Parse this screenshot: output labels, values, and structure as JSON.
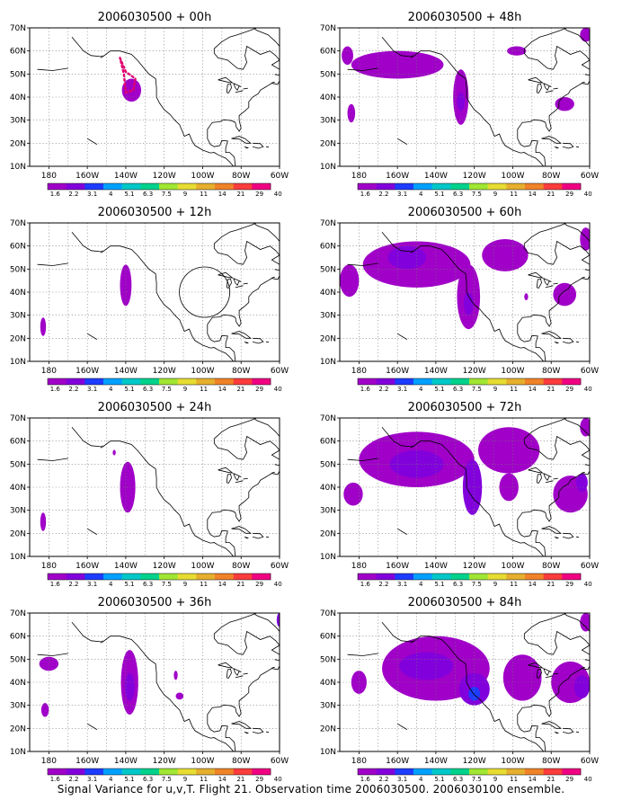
{
  "caption": "Signal Variance for u,v,T. Flight 21. Observation time 2006030500. 2006030100 ensemble.",
  "map": {
    "lat_labels": [
      "70N",
      "60N",
      "50N",
      "40N",
      "30N",
      "20N",
      "10N"
    ],
    "lon_labels": [
      "180",
      "160W",
      "140W",
      "120W",
      "100W",
      "80W",
      "60W"
    ],
    "lon_range_deg_east": [
      -190,
      -60
    ],
    "lat_range_deg_north": [
      10,
      70
    ],
    "grid": "dotted"
  },
  "colorbar": {
    "labels": [
      "1.6",
      "2.2",
      "3.1",
      "4",
      "5.1",
      "6.3",
      "7.5",
      "9",
      "11",
      "14",
      "21",
      "29",
      "40"
    ],
    "colors": [
      "#a000c8",
      "#8200dc",
      "#1e3cff",
      "#00a0ff",
      "#00c8c8",
      "#00d28c",
      "#a0e632",
      "#e6dc32",
      "#e6af2d",
      "#f08228",
      "#fa3c3c",
      "#f00082"
    ]
  },
  "panels": [
    {
      "title": "2006030500 + 00h",
      "col": 0,
      "row": 0,
      "blobs": [
        {
          "lon": -137,
          "lat": 43,
          "rx": 5,
          "ry": 5,
          "level": 0
        }
      ],
      "flight_track": true
    },
    {
      "title": "2006030500 + 12h",
      "col": 0,
      "row": 1,
      "blobs": [
        {
          "lon": -140,
          "lat": 43,
          "rx": 3,
          "ry": 9,
          "level": 0
        },
        {
          "lon": -183,
          "lat": 25,
          "rx": 1.5,
          "ry": 4,
          "level": 0
        }
      ]
    },
    {
      "title": "2006030500 + 24h",
      "col": 0,
      "row": 2,
      "blobs": [
        {
          "lon": -139,
          "lat": 40,
          "rx": 4,
          "ry": 11,
          "level": 0
        },
        {
          "lon": -183,
          "lat": 25,
          "rx": 1.5,
          "ry": 4,
          "level": 0
        },
        {
          "lon": -146,
          "lat": 55,
          "rx": 0.8,
          "ry": 1.2,
          "level": 0
        }
      ]
    },
    {
      "title": "2006030500 + 36h",
      "col": 0,
      "row": 3,
      "blobs": [
        {
          "lon": -138,
          "lat": 40,
          "rx": 4.5,
          "ry": 14,
          "level": 0
        },
        {
          "lon": -138,
          "lat": 38,
          "rx": 2.5,
          "ry": 6,
          "level": 1
        },
        {
          "lon": -180,
          "lat": 48,
          "rx": 5,
          "ry": 3,
          "level": 0
        },
        {
          "lon": -182,
          "lat": 28,
          "rx": 2,
          "ry": 3,
          "level": 0
        },
        {
          "lon": -114,
          "lat": 43,
          "rx": 1,
          "ry": 2,
          "level": 0
        },
        {
          "lon": -112,
          "lat": 34,
          "rx": 2,
          "ry": 1.5,
          "level": 0
        },
        {
          "lon": -60,
          "lat": 67,
          "rx": 1.5,
          "ry": 3,
          "level": 1
        }
      ]
    },
    {
      "title": "2006030500 + 48h",
      "col": 1,
      "row": 0,
      "blobs": [
        {
          "lon": -160,
          "lat": 54,
          "rx": 24,
          "ry": 6,
          "level": 0
        },
        {
          "lon": -186,
          "lat": 58,
          "rx": 3,
          "ry": 4,
          "level": 0
        },
        {
          "lon": -127,
          "lat": 40,
          "rx": 4,
          "ry": 12,
          "level": 0
        },
        {
          "lon": -127,
          "lat": 38,
          "rx": 2,
          "ry": 4,
          "level": 1
        },
        {
          "lon": -184,
          "lat": 33,
          "rx": 2,
          "ry": 4,
          "level": 0
        },
        {
          "lon": -98,
          "lat": 60,
          "rx": 5,
          "ry": 2,
          "level": 0
        },
        {
          "lon": -73,
          "lat": 37,
          "rx": 5,
          "ry": 3,
          "level": 0
        },
        {
          "lon": -62,
          "lat": 67,
          "rx": 3,
          "ry": 3,
          "level": 0
        }
      ]
    },
    {
      "title": "2006030500 + 60h",
      "col": 1,
      "row": 1,
      "blobs": [
        {
          "lon": -150,
          "lat": 52,
          "rx": 28,
          "ry": 10,
          "level": 0
        },
        {
          "lon": -155,
          "lat": 55,
          "rx": 10,
          "ry": 5,
          "level": 1
        },
        {
          "lon": -123,
          "lat": 38,
          "rx": 6,
          "ry": 14,
          "level": 0
        },
        {
          "lon": -123,
          "lat": 35,
          "rx": 2.5,
          "ry": 5,
          "level": 1
        },
        {
          "lon": -104,
          "lat": 56,
          "rx": 12,
          "ry": 7,
          "level": 0
        },
        {
          "lon": -185,
          "lat": 45,
          "rx": 5,
          "ry": 7,
          "level": 0
        },
        {
          "lon": -73,
          "lat": 39,
          "rx": 6,
          "ry": 5,
          "level": 0
        },
        {
          "lon": -93,
          "lat": 38,
          "rx": 1,
          "ry": 1.5,
          "level": 0
        },
        {
          "lon": -62,
          "lat": 63,
          "rx": 3,
          "ry": 5,
          "level": 0
        }
      ]
    },
    {
      "title": "2006030500 + 72h",
      "col": 1,
      "row": 2,
      "blobs": [
        {
          "lon": -150,
          "lat": 52,
          "rx": 30,
          "ry": 12,
          "level": 0
        },
        {
          "lon": -150,
          "lat": 50,
          "rx": 14,
          "ry": 6,
          "level": 1
        },
        {
          "lon": -121,
          "lat": 40,
          "rx": 5,
          "ry": 12,
          "level": 1
        },
        {
          "lon": -102,
          "lat": 56,
          "rx": 16,
          "ry": 10,
          "level": 0
        },
        {
          "lon": -102,
          "lat": 40,
          "rx": 5,
          "ry": 6,
          "level": 0
        },
        {
          "lon": -183,
          "lat": 37,
          "rx": 5,
          "ry": 5,
          "level": 0
        },
        {
          "lon": -70,
          "lat": 37,
          "rx": 9,
          "ry": 8,
          "level": 0
        },
        {
          "lon": -64,
          "lat": 42,
          "rx": 3,
          "ry": 4,
          "level": 1
        },
        {
          "lon": -62,
          "lat": 66,
          "rx": 3,
          "ry": 4,
          "level": 0
        }
      ]
    },
    {
      "title": "2006030500 + 84h",
      "col": 1,
      "row": 3,
      "blobs": [
        {
          "lon": -140,
          "lat": 46,
          "rx": 28,
          "ry": 14,
          "level": 0
        },
        {
          "lon": -145,
          "lat": 47,
          "rx": 14,
          "ry": 6,
          "level": 1
        },
        {
          "lon": -120,
          "lat": 37,
          "rx": 8,
          "ry": 7,
          "level": 1
        },
        {
          "lon": -120,
          "lat": 35,
          "rx": 3,
          "ry": 3,
          "level": 2
        },
        {
          "lon": -180,
          "lat": 40,
          "rx": 4,
          "ry": 5,
          "level": 0
        },
        {
          "lon": -95,
          "lat": 42,
          "rx": 10,
          "ry": 10,
          "level": 0
        },
        {
          "lon": -70,
          "lat": 40,
          "rx": 10,
          "ry": 9,
          "level": 0
        },
        {
          "lon": -64,
          "lat": 38,
          "rx": 4,
          "ry": 5,
          "level": 1
        },
        {
          "lon": -62,
          "lat": 66,
          "rx": 3,
          "ry": 4,
          "level": 0
        }
      ]
    }
  ]
}
